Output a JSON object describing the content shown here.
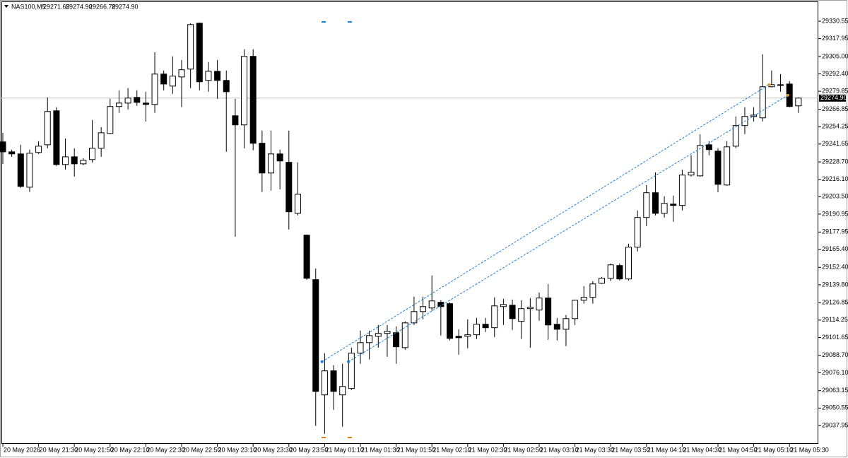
{
  "header": {
    "symbol": "NAS100,M5",
    "ohlc": [
      "29271.65",
      "29274.90",
      "29266.78",
      "29274.90"
    ]
  },
  "chart_data": {
    "type": "candlestick",
    "categories": [
      "20 May 2026",
      null,
      null,
      null,
      "20 May 21:30",
      null,
      null,
      null,
      "20 May 21:50",
      null,
      null,
      null,
      "20 May 22:10",
      null,
      null,
      null,
      "20 May 22:30",
      null,
      null,
      null,
      "20 May 22:50",
      null,
      null,
      null,
      "20 May 23:10",
      null,
      null,
      null,
      "20 May 23:30",
      null,
      null,
      null,
      "20 May 23:50",
      null,
      null,
      null,
      "21 May 01:10",
      null,
      null,
      null,
      "21 May 01:30",
      null,
      null,
      null,
      "21 May 01:50",
      null,
      null,
      null,
      "21 May 02:10",
      null,
      null,
      null,
      "21 May 02:30",
      null,
      null,
      null,
      "21 May 02:50",
      null,
      null,
      null,
      "21 May 03:10",
      null,
      null,
      null,
      "21 May 03:30",
      null,
      null,
      null,
      "21 May 03:50",
      null,
      null,
      null,
      "21 May 04:10",
      null,
      null,
      null,
      "21 May 04:30",
      null,
      null,
      null,
      "21 May 04:50",
      null,
      null,
      null,
      "21 May 05:10",
      null,
      null,
      null,
      "21 May 05:30",
      null
    ],
    "open": [
      29243.2,
      29236.0,
      29234.5,
      29210.4,
      29235.5,
      29241.1,
      29265.7,
      29226.8,
      29232.4,
      29227.3,
      29230.4,
      29238.6,
      29249.3,
      29268.8,
      29271.3,
      29275.4,
      29271.3,
      29270.3,
      29292.3,
      29283.6,
      29290.2,
      29295.9,
      29329.1,
      29287.7,
      29294.3,
      29287.7,
      29262.1,
      29255.5,
      29305.1,
      29242.2,
      29220.7,
      29234.5,
      29228.4,
      29191.5,
      29175.7,
      29143.5,
      29060.1,
      29077.5,
      29060.1,
      29064.7,
      29090.3,
      29097.9,
      29102.5,
      29104.6,
      29105.1,
      29094.3,
      29112.2,
      29120.4,
      29123.0,
      29127.1,
      29126.1,
      29102.5,
      29102.5,
      29103.6,
      29111.2,
      29108.7,
      29124.0,
      29125.0,
      29113.3,
      29122.5,
      29121.5,
      29130.2,
      29111.2,
      29107.6,
      29115.3,
      29128.6,
      29130.7,
      29140.9,
      29144.5,
      29153.7,
      29144.0,
      29167.0,
      29188.5,
      29206.4,
      29191.5,
      29198.2,
      29197.2,
      29219.2,
      29218.6,
      29241.1,
      29236.5,
      29212.0,
      29240.1,
      29255.0,
      29261.6,
      29260.6,
      29283.1,
      29284.1,
      29285.1,
      29269.3
    ],
    "high": [
      29249.8,
      29237.6,
      29241.1,
      29237.6,
      29243.7,
      29275.4,
      29268.3,
      29245.7,
      29238.6,
      29231.4,
      29259.0,
      29253.9,
      29274.4,
      29280.5,
      29282.1,
      29280.5,
      29279.5,
      29308.1,
      29294.9,
      29305.1,
      29302.5,
      29329.1,
      29329.6,
      29301.0,
      29302.5,
      29294.9,
      29274.4,
      29310.2,
      29310.2,
      29251.4,
      29251.4,
      29237.6,
      29251.4,
      29228.4,
      29176.2,
      29151.6,
      29090.3,
      29081.6,
      29082.6,
      29094.3,
      29106.6,
      29106.6,
      29110.7,
      29110.7,
      29109.7,
      29113.3,
      29131.2,
      29131.2,
      29146.5,
      29128.6,
      29127.1,
      29107.6,
      29114.8,
      29115.8,
      29115.8,
      29130.7,
      29129.6,
      29129.1,
      29128.6,
      29130.2,
      29134.2,
      29140.4,
      29115.8,
      29117.9,
      29129.1,
      29138.8,
      29142.4,
      29145.5,
      29155.2,
      29155.2,
      29169.5,
      29193.6,
      29212.0,
      29221.2,
      29203.8,
      29204.3,
      29223.2,
      29233.5,
      29248.8,
      29243.7,
      29238.6,
      29243.7,
      29261.6,
      29268.3,
      29268.3,
      29306.6,
      29294.9,
      29292.3,
      29287.2,
      29275.4
    ],
    "low": [
      29227.3,
      29232.4,
      29209.9,
      29206.9,
      29234.5,
      29238.6,
      29225.8,
      29223.2,
      29218.1,
      29226.3,
      29228.4,
      29232.4,
      29248.8,
      29264.2,
      29266.7,
      29269.3,
      29258.0,
      29264.2,
      29280.5,
      29278.0,
      29268.3,
      29282.1,
      29280.5,
      29279.5,
      29274.4,
      29236.0,
      29174.6,
      29238.6,
      29237.1,
      29206.9,
      29207.9,
      29208.9,
      29179.8,
      29190.0,
      29143.5,
      29037.6,
      29031.9,
      29049.3,
      29037.1,
      29063.7,
      29082.6,
      29085.7,
      29094.3,
      29087.7,
      29082.6,
      29092.8,
      29110.7,
      29114.8,
      29120.9,
      29103.0,
      29099.5,
      29089.2,
      29093.8,
      29100.5,
      29105.6,
      29102.0,
      29110.7,
      29107.1,
      29100.5,
      29094.3,
      29113.8,
      29100.0,
      29099.5,
      29095.4,
      29110.7,
      29126.1,
      29126.1,
      29140.4,
      29142.4,
      29142.9,
      29142.9,
      29163.9,
      29182.3,
      29190.0,
      29188.5,
      29185.4,
      29193.6,
      29218.1,
      29218.1,
      29233.5,
      29206.9,
      29211.5,
      29238.6,
      29248.8,
      29258.0,
      29258.0,
      29282.6,
      29279.5,
      29268.3,
      29264.2
    ],
    "close": [
      29236.0,
      29234.5,
      29211.0,
      29235.0,
      29240.1,
      29265.2,
      29226.8,
      29232.4,
      29227.3,
      29229.9,
      29238.6,
      29249.8,
      29268.8,
      29271.3,
      29274.9,
      29271.8,
      29270.3,
      29292.3,
      29285.1,
      29290.8,
      29295.4,
      29328.1,
      29286.7,
      29294.3,
      29287.7,
      29279.5,
      29255.5,
      29305.1,
      29242.2,
      29220.7,
      29234.5,
      29229.4,
      29192.6,
      29205.3,
      29144.5,
      29062.6,
      29077.5,
      29062.6,
      29066.2,
      29090.3,
      29097.9,
      29103.0,
      29104.6,
      29106.1,
      29094.9,
      29112.2,
      29120.4,
      29124.0,
      29128.1,
      29124.0,
      29101.0,
      29101.5,
      29103.6,
      29111.2,
      29108.7,
      29124.5,
      29125.5,
      29115.3,
      29122.5,
      29123.5,
      29130.2,
      29110.7,
      29107.6,
      29115.3,
      29128.6,
      29130.7,
      29140.4,
      29144.5,
      29154.2,
      29144.0,
      29167.0,
      29188.5,
      29206.4,
      29191.5,
      29198.7,
      29197.2,
      29219.2,
      29221.2,
      29240.6,
      29237.6,
      29212.5,
      29239.6,
      29255.0,
      29261.6,
      29262.6,
      29283.1,
      29284.6,
      29284.6,
      29268.8,
      29274.9
    ],
    "bull_color": "#ffffff",
    "bear_color": "#000000",
    "ylim": [
      29024.65,
      29344.87
    ],
    "yticks": [
      29330.55,
      29317.95,
      {
        "value": 29305,
        "label": "29305.00"
      },
      {
        "value": 29292.4,
        "label": "29292.40"
      },
      29279.85,
      29266.85,
      29254.25,
      29241.65,
      {
        "value": 29228.7,
        "label": "29228.70"
      },
      {
        "value": 29216.1,
        "label": "29216.10"
      },
      {
        "value": 29203.5,
        "label": "29203.50"
      },
      29190.95,
      29177.95,
      {
        "value": 29165.4,
        "label": "29165.40"
      },
      {
        "value": 29152.4,
        "label": "29152.40"
      },
      {
        "value": 29139.8,
        "label": "29139.80"
      },
      29126.85,
      29114.25,
      29101.65,
      {
        "value": 29088.7,
        "label": "29088.70"
      },
      {
        "value": 29076.1,
        "label": "29076.10"
      },
      29063.15,
      29050.55,
      29037.95
    ],
    "last_price": {
      "value": 29274.9,
      "label": "29274.90"
    },
    "trendlines": [
      {
        "x": [
          35.7,
          85.7
        ],
        "y": [
          29084.1,
          29284.6
        ],
        "color": "#1e7fd6"
      },
      {
        "x": [
          38.66,
          87.8
        ],
        "y": [
          29084.1,
          29276.9
        ],
        "color": "#1e7fd6"
      }
    ],
    "grid": false
  }
}
